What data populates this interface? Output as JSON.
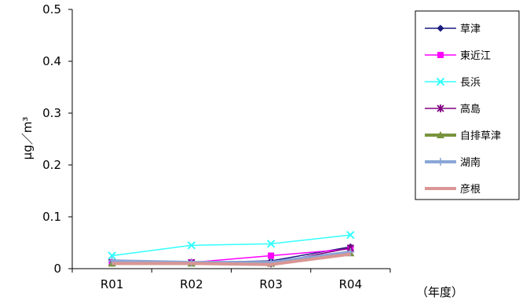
{
  "chart_data": {
    "type": "line",
    "categories": [
      "R01",
      "R02",
      "R03",
      "R04"
    ],
    "ylabel": "μg／m³",
    "xunit": "（年度）",
    "ylim": [
      0,
      0.5
    ],
    "yticks": [
      "0",
      "0.1",
      "0.2",
      "0.3",
      "0.4",
      "0.5"
    ],
    "grid": false,
    "legend_position": "right",
    "series": [
      {
        "name": "草津",
        "values": [
          0.012,
          0.012,
          0.015,
          0.042
        ],
        "color": "#1a1a80",
        "marker": "diamond",
        "width": 1.5
      },
      {
        "name": "東近江",
        "values": [
          0.012,
          0.012,
          0.025,
          0.038
        ],
        "color": "#ff00ff",
        "marker": "square",
        "width": 1.5
      },
      {
        "name": "長浜",
        "values": [
          0.025,
          0.045,
          0.048,
          0.065
        ],
        "color": "#33ffff",
        "marker": "x",
        "width": 1.5
      },
      {
        "name": "高島",
        "values": [
          0.012,
          0.012,
          0.01,
          0.04
        ],
        "color": "#800080",
        "marker": "asterisk",
        "width": 1.5
      },
      {
        "name": "自排草津",
        "values": [
          0.01,
          0.01,
          0.01,
          0.03
        ],
        "color": "#77933c",
        "marker": "triangle",
        "width": 4
      },
      {
        "name": "湖南",
        "values": [
          0.015,
          0.012,
          0.012,
          0.032
        ],
        "color": "#8aa6d6",
        "marker": "plus",
        "width": 4
      },
      {
        "name": "彦根",
        "values": [
          0.01,
          0.01,
          0.008,
          0.028
        ],
        "color": "#d99694",
        "marker": "none",
        "width": 4
      }
    ]
  }
}
